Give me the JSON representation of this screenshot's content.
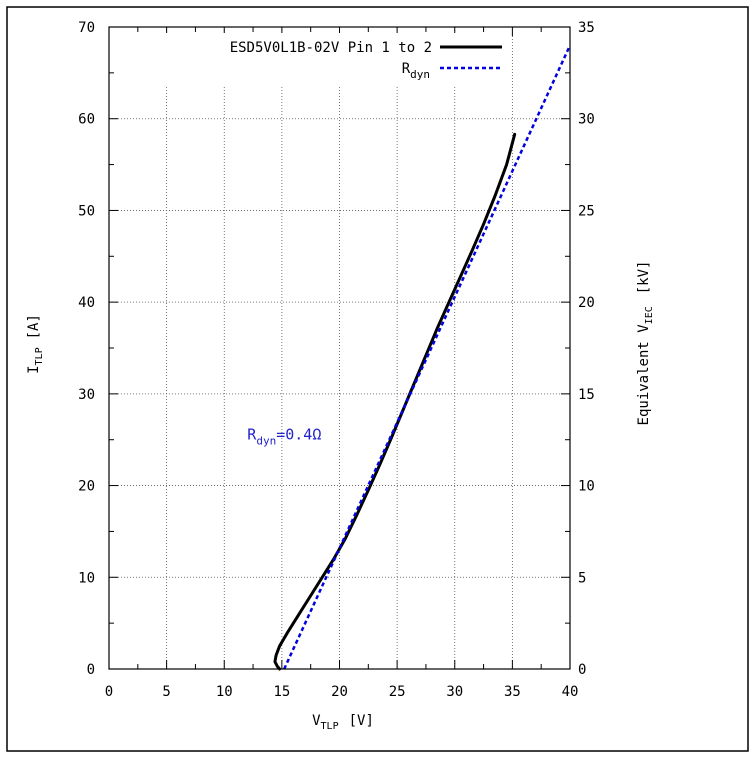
{
  "chart_data": {
    "type": "line",
    "xlabel": {
      "main": "V",
      "sub": "TLP",
      "unit": "[V]"
    },
    "ylabel_left": {
      "main": "I",
      "sub": "TLP",
      "unit": "[A]"
    },
    "ylabel_right": {
      "main": "Equivalent V",
      "sub": "IEC",
      "unit": "[kV]"
    },
    "xlim": [
      0,
      40
    ],
    "ylim_left": [
      0,
      70
    ],
    "ylim_right": [
      0,
      35
    ],
    "x_ticks": [
      0,
      5,
      10,
      15,
      20,
      25,
      30,
      35,
      40
    ],
    "y_ticks_left": [
      0,
      10,
      20,
      30,
      40,
      50,
      60,
      70
    ],
    "y_ticks_right": [
      0,
      5,
      10,
      15,
      20,
      25,
      30,
      35
    ],
    "grid": true,
    "legend_position": "top-right",
    "series": [
      {
        "name": "ESD5V0L1B-02V Pin 1 to 2",
        "color": "#000000",
        "style": "solid",
        "points": [
          [
            14.8,
            0.0
          ],
          [
            14.6,
            0.3
          ],
          [
            14.4,
            0.8
          ],
          [
            14.5,
            1.5
          ],
          [
            14.8,
            2.5
          ],
          [
            15.5,
            4.0
          ],
          [
            16.5,
            6.0
          ],
          [
            17.5,
            8.0
          ],
          [
            18.5,
            10.0
          ],
          [
            19.5,
            12.0
          ],
          [
            20.5,
            14.2
          ],
          [
            21.5,
            16.8
          ],
          [
            22.5,
            19.5
          ],
          [
            23.5,
            22.3
          ],
          [
            24.5,
            25.2
          ],
          [
            25.5,
            28.2
          ],
          [
            26.5,
            31.2
          ],
          [
            27.5,
            34.2
          ],
          [
            28.5,
            37.2
          ],
          [
            29.5,
            40.0
          ],
          [
            30.5,
            42.8
          ],
          [
            31.5,
            45.6
          ],
          [
            32.5,
            48.5
          ],
          [
            33.5,
            51.6
          ],
          [
            34.5,
            55.0
          ],
          [
            35.2,
            58.3
          ]
        ]
      },
      {
        "name": "R",
        "name_sub": "dyn",
        "color": "#0000e0",
        "style": "dashed",
        "points": [
          [
            15.2,
            0.0
          ],
          [
            40.0,
            68.0
          ]
        ]
      }
    ],
    "annotations": [
      {
        "text": "R",
        "sub": "dyn",
        "rest": "=0.4Ω",
        "color": "#2222cc",
        "at": [
          12.0,
          25.0
        ]
      }
    ]
  }
}
